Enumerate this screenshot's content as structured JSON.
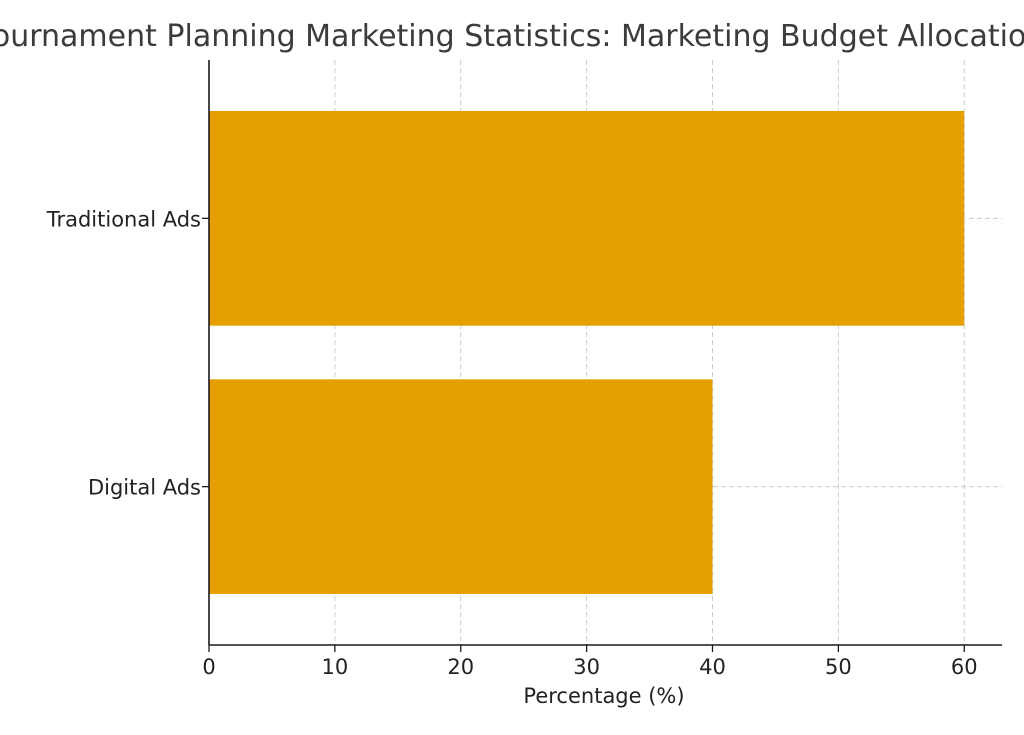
{
  "chart_data": {
    "type": "bar",
    "orientation": "horizontal",
    "title": "Tournament Planning Marketing Statistics: Marketing Budget Allocation",
    "xlabel": "Percentage (%)",
    "ylabel": "",
    "categories": [
      "Digital Ads",
      "Traditional Ads"
    ],
    "values": [
      40,
      60
    ],
    "xlim": [
      0,
      63
    ],
    "xticks": [
      0,
      10,
      20,
      30,
      40,
      50,
      60
    ],
    "xtick_labels": [
      "0",
      "10",
      "20",
      "30",
      "40",
      "50",
      "60"
    ],
    "bar_color": "#E69F00",
    "grid": true,
    "legend": "none"
  }
}
